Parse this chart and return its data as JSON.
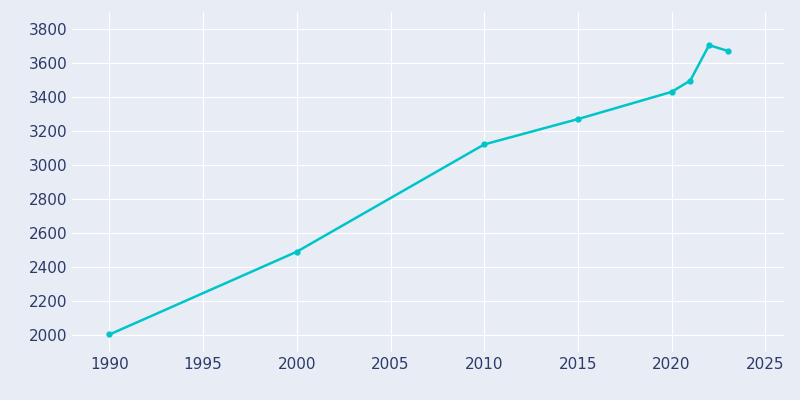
{
  "years": [
    1990,
    2000,
    2010,
    2015,
    2020,
    2021,
    2022,
    2023
  ],
  "population": [
    2003,
    2490,
    3121,
    3270,
    3430,
    3497,
    3705,
    3671
  ],
  "line_color": "#00C5C8",
  "marker_color": "#00C5C8",
  "figure_bg_color": "#E8EDF5",
  "plot_bg_color": "#E8EDF5",
  "grid_color": "#FFFFFF",
  "tick_color": "#2D3A6A",
  "xlim": [
    1988,
    2026
  ],
  "ylim": [
    1900,
    3900
  ],
  "xticks": [
    1990,
    1995,
    2000,
    2005,
    2010,
    2015,
    2020,
    2025
  ],
  "yticks": [
    2000,
    2200,
    2400,
    2600,
    2800,
    3000,
    3200,
    3400,
    3600,
    3800
  ],
  "line_width": 1.8,
  "marker_size": 3.5,
  "tick_fontsize": 11
}
